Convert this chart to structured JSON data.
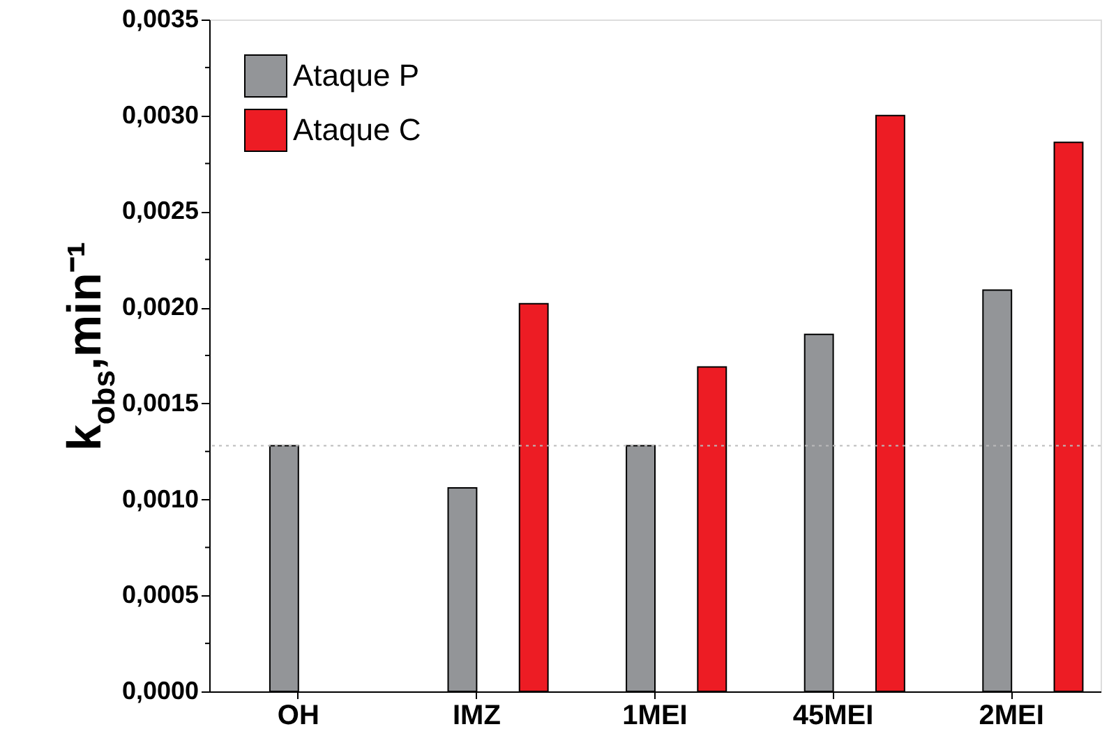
{
  "chart_data": {
    "type": "bar",
    "ylabel": "k$_{obs}$,min⁻¹",
    "categories": [
      "OH",
      "IMZ",
      "1MEI",
      "45MEI",
      "2MEI"
    ],
    "series": [
      {
        "name": "Ataque P",
        "color": "#939598",
        "values": [
          0.00128,
          0.00106,
          0.00128,
          0.00186,
          0.00209
        ]
      },
      {
        "name": "Ataque C",
        "color": "#ed1c24",
        "values": [
          null,
          0.00202,
          0.00169,
          0.003,
          0.00286
        ]
      }
    ],
    "ylim": [
      0,
      0.0035
    ],
    "yticks": [
      {
        "value": 0,
        "label": "0,0000"
      },
      {
        "value": 0.00025,
        "label": null
      },
      {
        "value": 0.0005,
        "label": "0,0005"
      },
      {
        "value": 0.00075,
        "label": null
      },
      {
        "value": 0.001,
        "label": "0,0010"
      },
      {
        "value": 0.00125,
        "label": null
      },
      {
        "value": 0.0015,
        "label": "0,0015"
      },
      {
        "value": 0.00175,
        "label": null
      },
      {
        "value": 0.002,
        "label": "0,0020"
      },
      {
        "value": 0.00225,
        "label": null
      },
      {
        "value": 0.0025,
        "label": "0,0025"
      },
      {
        "value": 0.00275,
        "label": null
      },
      {
        "value": 0.003,
        "label": "0,0030"
      },
      {
        "value": 0.00325,
        "label": null
      },
      {
        "value": 0.0035,
        "label": "0,0035"
      }
    ],
    "ref_lines": [
      {
        "axis": "y",
        "value": 0.00128,
        "color": "#bbbbbb",
        "line_style": "dotted"
      }
    ],
    "legend": "top left",
    "grid": false
  }
}
